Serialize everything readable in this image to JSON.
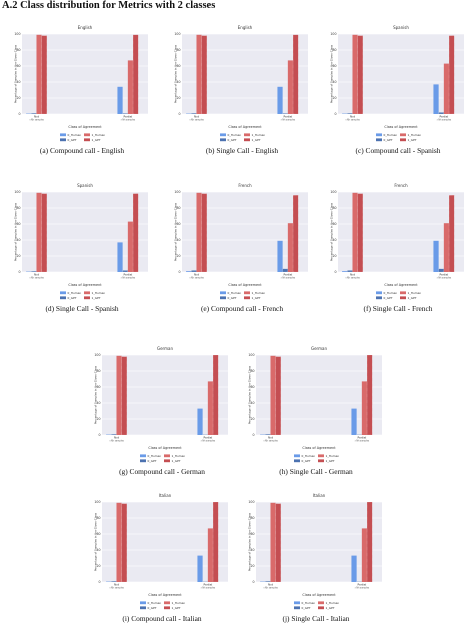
{
  "section": {
    "title": "A.2 Class distribution for Metrics with 2 classes"
  },
  "chart_data": [
    {
      "type": "bar",
      "title": "English",
      "caption": "(a) Compound call - English",
      "ylabel": "Percentage of Samples in the Given Class",
      "xlabel": "Class of Agreement",
      "categories": [
        "Not",
        "Partial"
      ],
      "category_sublabels": [
        "≈Nh samples",
        "≈Nh samples"
      ],
      "ylim": [
        0,
        100
      ],
      "yticks": [
        "0",
        "20",
        "40",
        "60",
        "80",
        "100"
      ],
      "grid": true,
      "legend": "bottom-center",
      "series": [
        {
          "name": "0_Human",
          "color": "#6a9be8",
          "values": [
            0.5,
            34
          ]
        },
        {
          "name": "1_Human",
          "color": "#d96a6a",
          "values": [
            99,
            67
          ]
        },
        {
          "name": "0_GPT",
          "color": "#4c72b0",
          "values": [
            1,
            0.8
          ]
        },
        {
          "name": "1_GPT",
          "color": "#c44e52",
          "values": [
            98,
            99
          ]
        }
      ]
    },
    {
      "type": "bar",
      "title": "English",
      "caption": "(b) Single Call - English",
      "ylabel": "Percentage of Samples in the Given Class",
      "xlabel": "Class of Agreement",
      "categories": [
        "Not",
        "Partial"
      ],
      "category_sublabels": [
        "≈Nh samples",
        "≈Nh samples"
      ],
      "ylim": [
        0,
        100
      ],
      "yticks": [
        "0",
        "20",
        "40",
        "60",
        "80",
        "100"
      ],
      "grid": true,
      "legend": "bottom-center",
      "series": [
        {
          "name": "0_Human",
          "color": "#6a9be8",
          "values": [
            0.5,
            34
          ]
        },
        {
          "name": "1_Human",
          "color": "#d96a6a",
          "values": [
            99,
            67
          ]
        },
        {
          "name": "0_GPT",
          "color": "#4c72b0",
          "values": [
            1,
            0.8
          ]
        },
        {
          "name": "1_GPT",
          "color": "#c44e52",
          "values": [
            98,
            99
          ]
        }
      ]
    },
    {
      "type": "bar",
      "title": "Spanish",
      "caption": "(c) Compound call - Spanish",
      "ylabel": "Percentage of Samples in the Given Class",
      "xlabel": "Class of Agreement",
      "categories": [
        "Not",
        "Partial"
      ],
      "category_sublabels": [
        "≈Nh samples",
        "≈Nh samples"
      ],
      "ylim": [
        0,
        100
      ],
      "yticks": [
        "0",
        "20",
        "40",
        "60",
        "80",
        "100"
      ],
      "grid": true,
      "legend": "bottom-center",
      "series": [
        {
          "name": "0_Human",
          "color": "#6a9be8",
          "values": [
            0.5,
            37
          ]
        },
        {
          "name": "1_Human",
          "color": "#d96a6a",
          "values": [
            99,
            63
          ]
        },
        {
          "name": "0_GPT",
          "color": "#4c72b0",
          "values": [
            1,
            2
          ]
        },
        {
          "name": "1_GPT",
          "color": "#c44e52",
          "values": [
            98,
            98
          ]
        }
      ]
    },
    {
      "type": "bar",
      "title": "Spanish",
      "caption": "(d) Single Call - Spanish",
      "ylabel": "Percentage of Samples in the Given Class",
      "xlabel": "Class of Agreement",
      "categories": [
        "Not",
        "Partial"
      ],
      "category_sublabels": [
        "≈Nh samples",
        "≈Nh samples"
      ],
      "ylim": [
        0,
        100
      ],
      "yticks": [
        "0",
        "20",
        "40",
        "60",
        "80",
        "100"
      ],
      "grid": true,
      "legend": "bottom-center",
      "series": [
        {
          "name": "0_Human",
          "color": "#6a9be8",
          "values": [
            0.5,
            37
          ]
        },
        {
          "name": "1_Human",
          "color": "#d96a6a",
          "values": [
            99,
            63
          ]
        },
        {
          "name": "0_GPT",
          "color": "#4c72b0",
          "values": [
            1,
            2
          ]
        },
        {
          "name": "1_GPT",
          "color": "#c44e52",
          "values": [
            98,
            98
          ]
        }
      ]
    },
    {
      "type": "bar",
      "title": "French",
      "caption": "(e) Compound call - French",
      "ylabel": "Percentage of Samples in the Given Class",
      "xlabel": "Class of Agreement",
      "categories": [
        "Not",
        "Partial"
      ],
      "category_sublabels": [
        "≈Nh samples",
        "≈Nh samples"
      ],
      "ylim": [
        0,
        100
      ],
      "yticks": [
        "0",
        "20",
        "40",
        "60",
        "80",
        "100"
      ],
      "grid": true,
      "legend": "bottom-center",
      "series": [
        {
          "name": "0_Human",
          "color": "#6a9be8",
          "values": [
            1,
            39
          ]
        },
        {
          "name": "1_Human",
          "color": "#d96a6a",
          "values": [
            99,
            61
          ]
        },
        {
          "name": "0_GPT",
          "color": "#4c72b0",
          "values": [
            2,
            4
          ]
        },
        {
          "name": "1_GPT",
          "color": "#c44e52",
          "values": [
            98,
            96
          ]
        }
      ]
    },
    {
      "type": "bar",
      "title": "French",
      "caption": "(f) Single Call - French",
      "ylabel": "Percentage of Samples in the Given Class",
      "xlabel": "Class of Agreement",
      "categories": [
        "Not",
        "Partial"
      ],
      "category_sublabels": [
        "≈Nh samples",
        "≈Nh samples"
      ],
      "ylim": [
        0,
        100
      ],
      "yticks": [
        "0",
        "20",
        "40",
        "60",
        "80",
        "100"
      ],
      "grid": true,
      "legend": "bottom-center",
      "series": [
        {
          "name": "0_Human",
          "color": "#6a9be8",
          "values": [
            1,
            39
          ]
        },
        {
          "name": "1_Human",
          "color": "#d96a6a",
          "values": [
            99,
            61
          ]
        },
        {
          "name": "0_GPT",
          "color": "#4c72b0",
          "values": [
            2,
            4
          ]
        },
        {
          "name": "1_GPT",
          "color": "#c44e52",
          "values": [
            98,
            96
          ]
        }
      ]
    },
    {
      "type": "bar",
      "title": "German",
      "caption": "(g) Compound call - German",
      "ylabel": "Percentage of Samples in the Given Class",
      "xlabel": "Class of Agreement",
      "categories": [
        "Not",
        "Partial"
      ],
      "category_sublabels": [
        "≈Nh samples",
        "≈Nh samples"
      ],
      "ylim": [
        0,
        100
      ],
      "yticks": [
        "0",
        "20",
        "40",
        "60",
        "80",
        "100"
      ],
      "grid": true,
      "legend": "bottom-center",
      "series": [
        {
          "name": "0_Human",
          "color": "#6a9be8",
          "values": [
            0.5,
            33
          ]
        },
        {
          "name": "1_Human",
          "color": "#d96a6a",
          "values": [
            99,
            67
          ]
        },
        {
          "name": "0_GPT",
          "color": "#4c72b0",
          "values": [
            1,
            0.5
          ]
        },
        {
          "name": "1_GPT",
          "color": "#c44e52",
          "values": [
            98,
            100
          ]
        }
      ]
    },
    {
      "type": "bar",
      "title": "German",
      "caption": "(h) Single Call - German",
      "ylabel": "Percentage of Samples in the Given Class",
      "xlabel": "Class of Agreement",
      "categories": [
        "Not",
        "Partial"
      ],
      "category_sublabels": [
        "≈Nh samples",
        "≈Nh samples"
      ],
      "ylim": [
        0,
        100
      ],
      "yticks": [
        "0",
        "20",
        "40",
        "60",
        "80",
        "100"
      ],
      "grid": true,
      "legend": "bottom-center",
      "series": [
        {
          "name": "0_Human",
          "color": "#6a9be8",
          "values": [
            0.5,
            33
          ]
        },
        {
          "name": "1_Human",
          "color": "#d96a6a",
          "values": [
            99,
            67
          ]
        },
        {
          "name": "0_GPT",
          "color": "#4c72b0",
          "values": [
            1,
            0.5
          ]
        },
        {
          "name": "1_GPT",
          "color": "#c44e52",
          "values": [
            98,
            100
          ]
        }
      ]
    },
    {
      "type": "bar",
      "title": "Italian",
      "caption": "(i) Compound call - Italian",
      "ylabel": "Percentage of Samples in the Given Class",
      "xlabel": "Class of Agreement",
      "categories": [
        "Not",
        "Partial"
      ],
      "category_sublabels": [
        "≈Nh samples",
        "≈Nh samples"
      ],
      "ylim": [
        0,
        100
      ],
      "yticks": [
        "0",
        "20",
        "40",
        "60",
        "80",
        "100"
      ],
      "grid": true,
      "legend": "bottom-center",
      "series": [
        {
          "name": "0_Human",
          "color": "#6a9be8",
          "values": [
            0.5,
            33
          ]
        },
        {
          "name": "1_Human",
          "color": "#d96a6a",
          "values": [
            99,
            67
          ]
        },
        {
          "name": "0_GPT",
          "color": "#4c72b0",
          "values": [
            1,
            0.5
          ]
        },
        {
          "name": "1_GPT",
          "color": "#c44e52",
          "values": [
            98,
            100
          ]
        }
      ]
    },
    {
      "type": "bar",
      "title": "Italian",
      "caption": "(j) Single Call - Italian",
      "ylabel": "Percentage of Samples in the Given Class",
      "xlabel": "Class of Agreement",
      "categories": [
        "Not",
        "Partial"
      ],
      "category_sublabels": [
        "≈Nh samples",
        "≈Nh samples"
      ],
      "ylim": [
        0,
        100
      ],
      "yticks": [
        "0",
        "20",
        "40",
        "60",
        "80",
        "100"
      ],
      "grid": true,
      "legend": "bottom-center",
      "series": [
        {
          "name": "0_Human",
          "color": "#6a9be8",
          "values": [
            0.5,
            33
          ]
        },
        {
          "name": "1_Human",
          "color": "#d96a6a",
          "values": [
            99,
            67
          ]
        },
        {
          "name": "0_GPT",
          "color": "#4c72b0",
          "values": [
            1,
            0.5
          ]
        },
        {
          "name": "1_GPT",
          "color": "#c44e52",
          "values": [
            98,
            100
          ]
        }
      ]
    }
  ]
}
